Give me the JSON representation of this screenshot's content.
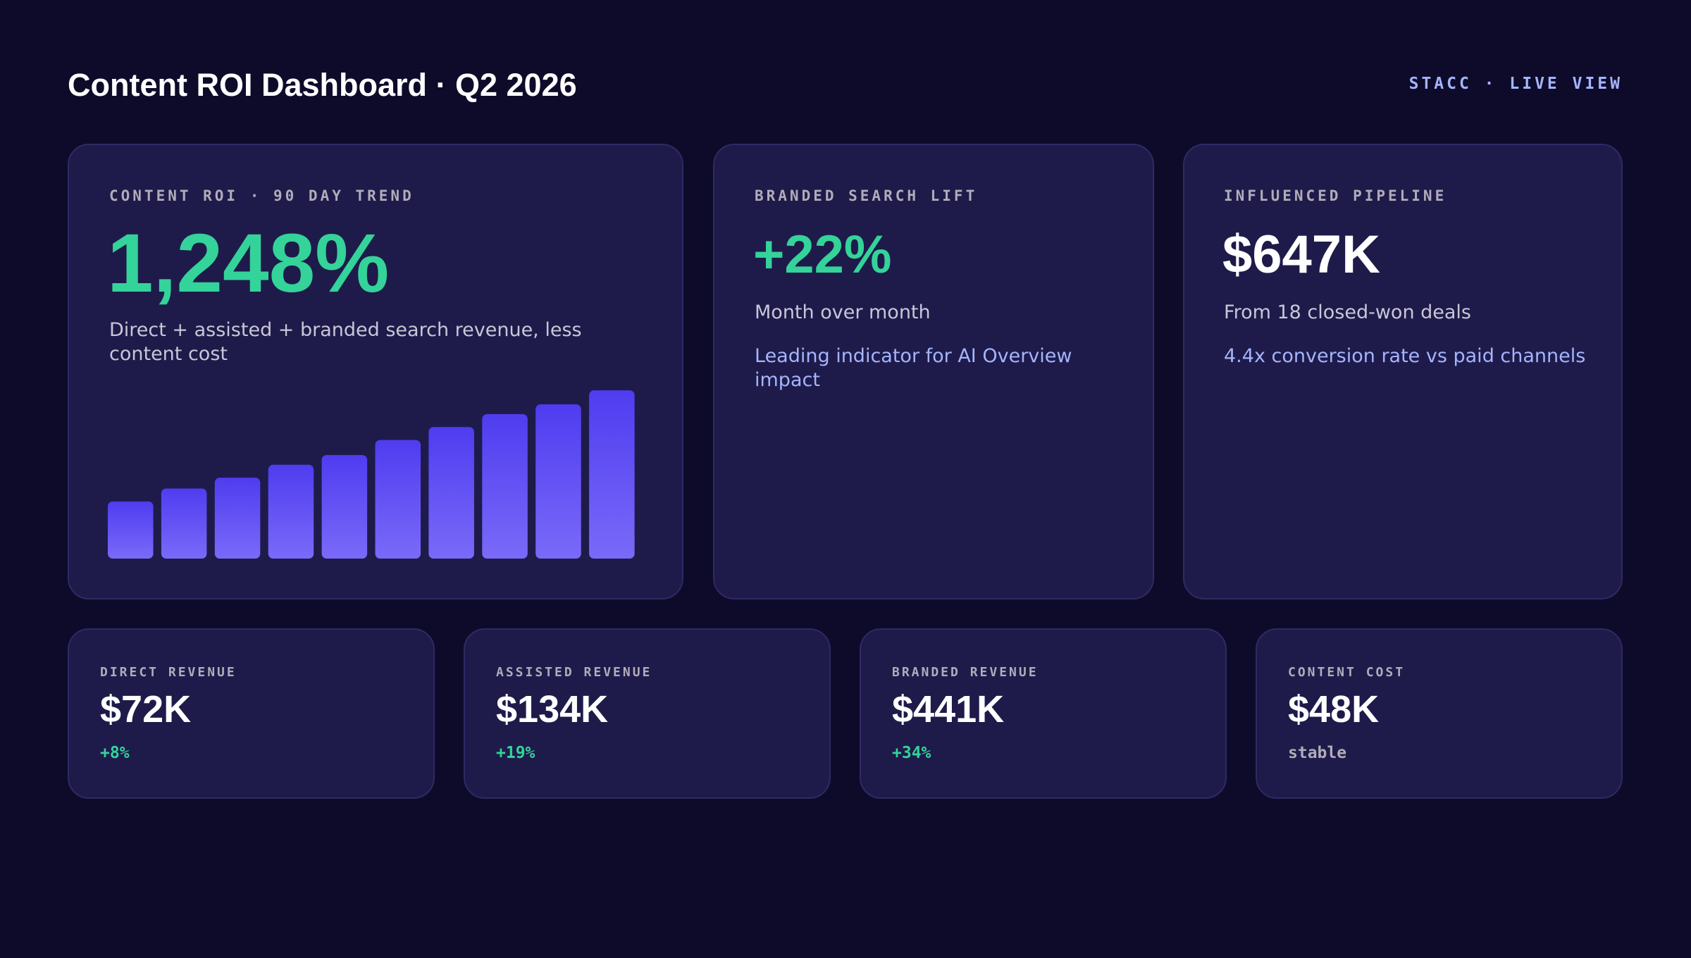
{
  "header": {
    "title": "Content ROI Dashboard · Q2 2026",
    "tag": "STACC · LIVE VIEW"
  },
  "roi_card": {
    "label": "CONTENT ROI · 90 DAY TREND",
    "value": "1,248%",
    "description": "Direct + assisted + branded search revenue, less content cost",
    "chart": {
      "type": "bar",
      "values": [
        53,
        65,
        75,
        87,
        96,
        110,
        122,
        134,
        143,
        156
      ],
      "ylim": [
        0,
        160
      ],
      "color": "#4f3cf0"
    }
  },
  "branded_card": {
    "label": "BRANDED SEARCH LIFT",
    "value": "+22%",
    "sub": "Month over month",
    "note": "Leading indicator for AI Overview impact"
  },
  "pipeline_card": {
    "label": "INFLUENCED PIPELINE",
    "value": "$647K",
    "sub": "From 18 closed-won deals",
    "note": "4.4x conversion rate vs paid channels"
  },
  "metrics": [
    {
      "label": "DIRECT REVENUE",
      "value": "$72K",
      "change": "+8%"
    },
    {
      "label": "ASSISTED REVENUE",
      "value": "$134K",
      "change": "+19%"
    },
    {
      "label": "BRANDED REVENUE",
      "value": "$441K",
      "change": "+34%"
    },
    {
      "label": "CONTENT COST",
      "value": "$48K",
      "change": "stable"
    }
  ]
}
